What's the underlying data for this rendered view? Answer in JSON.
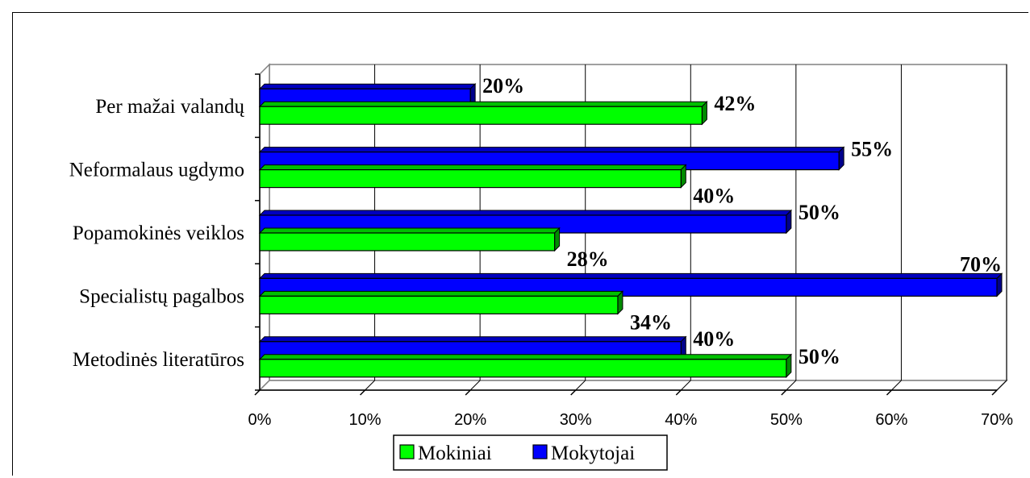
{
  "chart_data": {
    "type": "bar",
    "orientation": "horizontal",
    "categories": [
      "Metodinės literatūros",
      "Specialistų pagalbos",
      "Popamokinės veiklos",
      "Neformalaus ugdymo",
      "Per mažai valandų"
    ],
    "series": [
      {
        "name": "Mokiniai",
        "color": "#00ff00",
        "values": [
          50,
          34,
          28,
          40,
          42
        ],
        "labels": [
          "50%",
          "34%",
          "28%",
          "40%",
          "42%"
        ]
      },
      {
        "name": "Mokytojai",
        "color": "#0000ff",
        "values": [
          40,
          70,
          50,
          55,
          20
        ],
        "labels": [
          "40%",
          "70%",
          "50%",
          "55%",
          "20%"
        ]
      }
    ],
    "xlim": [
      0,
      70
    ],
    "xticks": [
      0,
      10,
      20,
      30,
      40,
      50,
      60,
      70
    ],
    "xtick_labels": [
      "0%",
      "10%",
      "20%",
      "30%",
      "40%",
      "50%",
      "60%",
      "70%"
    ],
    "grid": "vertical",
    "legend": "bottom",
    "style": "3d"
  }
}
